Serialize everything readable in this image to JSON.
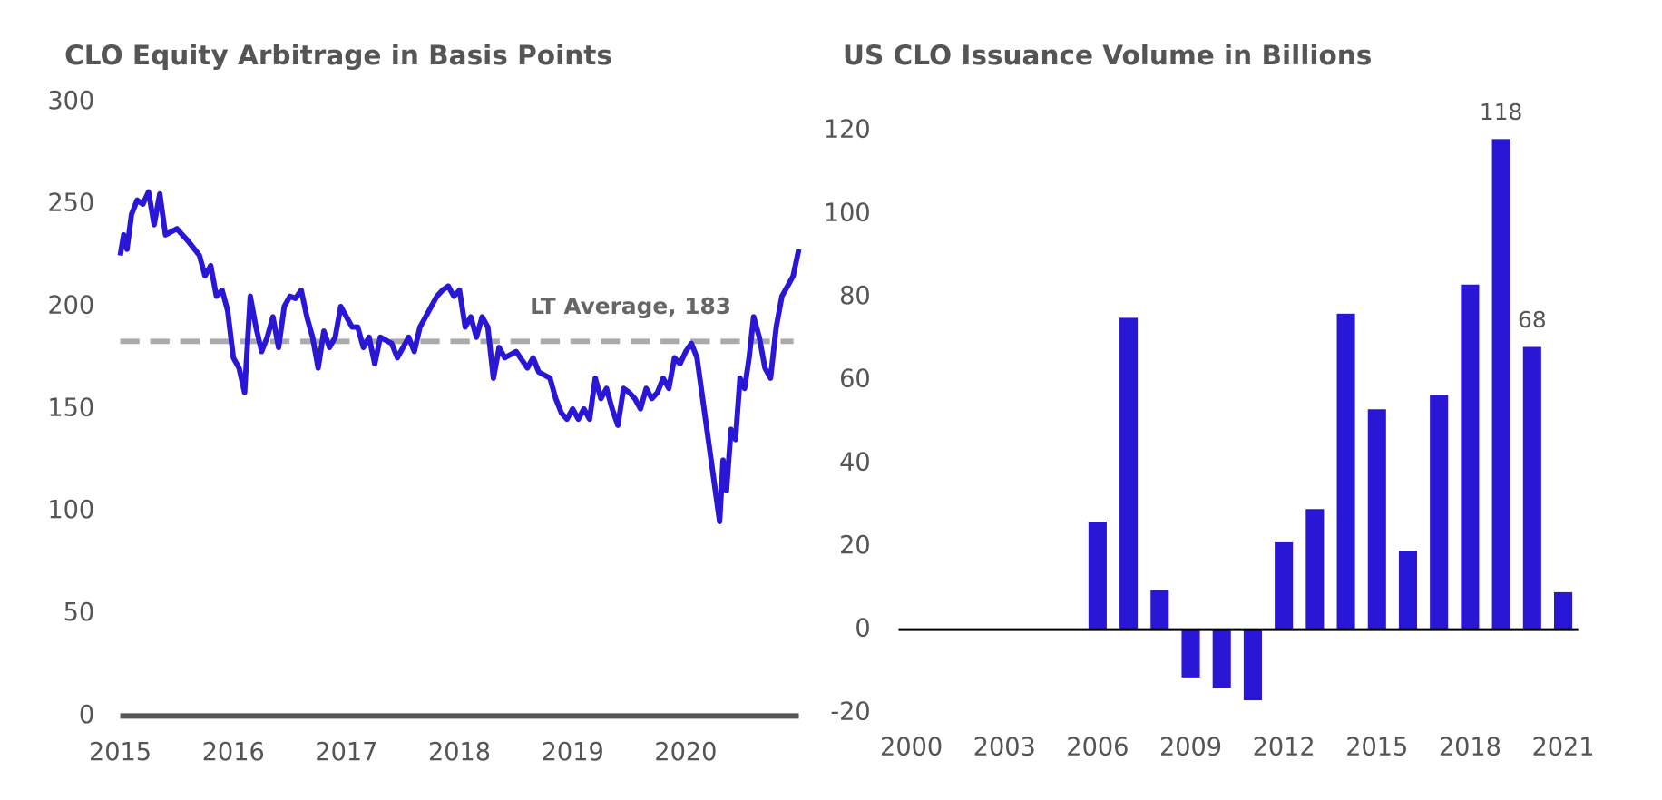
{
  "chart_data": [
    {
      "type": "line",
      "title": "CLO Equity Arbitrage in Basis Points",
      "x": [
        2015.0,
        2015.03,
        2015.06,
        2015.1,
        2015.15,
        2015.2,
        2015.25,
        2015.3,
        2015.35,
        2015.4,
        2015.5,
        2015.6,
        2015.7,
        2015.75,
        2015.8,
        2015.85,
        2015.9,
        2015.95,
        2016.0,
        2016.05,
        2016.1,
        2016.15,
        2016.2,
        2016.25,
        2016.3,
        2016.35,
        2016.4,
        2016.45,
        2016.5,
        2016.55,
        2016.6,
        2016.65,
        2016.7,
        2016.75,
        2016.8,
        2016.85,
        2016.9,
        2016.95,
        2017.0,
        2017.05,
        2017.1,
        2017.15,
        2017.2,
        2017.25,
        2017.3,
        2017.4,
        2017.45,
        2017.5,
        2017.55,
        2017.6,
        2017.65,
        2017.7,
        2017.75,
        2017.8,
        2017.85,
        2017.9,
        2017.95,
        2018.0,
        2018.05,
        2018.1,
        2018.15,
        2018.2,
        2018.25,
        2018.3,
        2018.35,
        2018.4,
        2018.5,
        2018.6,
        2018.65,
        2018.7,
        2018.8,
        2018.85,
        2018.9,
        2018.95,
        2019.0,
        2019.05,
        2019.1,
        2019.15,
        2019.2,
        2019.25,
        2019.3,
        2019.35,
        2019.4,
        2019.45,
        2019.5,
        2019.55,
        2019.6,
        2019.65,
        2019.7,
        2019.75,
        2019.8,
        2019.85,
        2019.9,
        2019.95,
        2020.0,
        2020.05,
        2020.1,
        2020.3,
        2020.33,
        2020.36,
        2020.4,
        2020.44,
        2020.48,
        2020.52,
        2020.56,
        2020.6,
        2020.65,
        2020.7,
        2020.75,
        2020.8,
        2020.85,
        2020.9,
        2020.95,
        2021.0
      ],
      "series": [
        {
          "name": "CLO Equity Arbitrage",
          "color": "#2a17d6",
          "values": [
            225,
            235,
            228,
            245,
            252,
            250,
            256,
            240,
            255,
            235,
            238,
            232,
            225,
            215,
            220,
            205,
            208,
            198,
            175,
            170,
            158,
            205,
            190,
            178,
            185,
            195,
            180,
            200,
            205,
            204,
            208,
            195,
            185,
            170,
            188,
            180,
            185,
            200,
            195,
            190,
            190,
            180,
            185,
            172,
            185,
            182,
            175,
            180,
            185,
            178,
            190,
            195,
            200,
            205,
            208,
            210,
            205,
            208,
            190,
            195,
            185,
            195,
            190,
            165,
            180,
            175,
            178,
            170,
            175,
            168,
            165,
            155,
            148,
            145,
            150,
            145,
            150,
            145,
            165,
            155,
            160,
            150,
            142,
            160,
            158,
            155,
            150,
            160,
            155,
            158,
            165,
            160,
            175,
            172,
            178,
            182,
            175,
            95,
            125,
            110,
            140,
            135,
            165,
            160,
            175,
            195,
            185,
            170,
            165,
            190,
            205,
            210,
            215,
            228
          ]
        }
      ],
      "lt_average": 183,
      "annotation": "LT Average, 183",
      "xlim": [
        2015,
        2021
      ],
      "xticks": [
        2015,
        2016,
        2017,
        2018,
        2019,
        2020
      ],
      "ylim": [
        0,
        300
      ],
      "yticks": [
        0,
        50,
        100,
        150,
        200,
        250,
        300
      ]
    },
    {
      "type": "bar",
      "title": "US CLO Issuance Volume in Billions",
      "categories": [
        "2000",
        null,
        null,
        "2003",
        null,
        null,
        "2006",
        null,
        null,
        "2009",
        null,
        null,
        "2012",
        null,
        null,
        "2015",
        null,
        null,
        "2018",
        null,
        null,
        "2021"
      ],
      "values": [
        0,
        0,
        0,
        0,
        0,
        0,
        26,
        75,
        9.5,
        -11.5,
        -14,
        -17,
        21,
        29,
        76,
        53,
        19,
        56.5,
        83,
        118,
        68,
        9
      ],
      "value_labels": [
        null,
        null,
        null,
        null,
        null,
        null,
        null,
        null,
        null,
        null,
        null,
        null,
        null,
        null,
        null,
        null,
        null,
        null,
        null,
        "118",
        "68",
        null
      ],
      "color": "#2a17d6",
      "ylim": [
        -20,
        120
      ],
      "yticks": [
        -20,
        0,
        20,
        40,
        60,
        80,
        100,
        120
      ]
    }
  ]
}
